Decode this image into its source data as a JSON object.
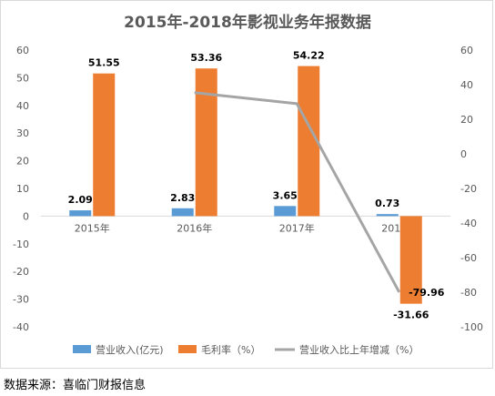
{
  "chart_data": {
    "type": "bar",
    "title": "2015年-2018年影视业务年报数据",
    "categories": [
      "2015年",
      "2016年",
      "2017年",
      "2018年"
    ],
    "series": [
      {
        "name": "营业收入(亿元)",
        "kind": "bar",
        "axis": "left",
        "color": "#5B9BD5",
        "values": [
          2.09,
          2.83,
          3.65,
          0.73
        ],
        "labels": [
          "2.09",
          "2.83",
          "3.65",
          "0.73"
        ]
      },
      {
        "name": "毛利率（%）",
        "kind": "bar",
        "axis": "left",
        "color": "#ED7D31",
        "values": [
          51.55,
          53.36,
          54.22,
          -31.66
        ],
        "labels": [
          "51.55",
          "53.36",
          "54.22",
          "-31.66"
        ]
      },
      {
        "name": "营业收入比上年增减（%）",
        "kind": "line",
        "axis": "right",
        "color": "#A5A5A5",
        "values": [
          null,
          35.4,
          29.0,
          -79.96
        ],
        "labels": [
          null,
          null,
          null,
          "-79.96"
        ]
      }
    ],
    "left_axis": {
      "ylim": [
        -40,
        60
      ],
      "ticks": [
        "60",
        "50",
        "40",
        "30",
        "20",
        "10",
        "0",
        "-10",
        "-20",
        "-30",
        "-40"
      ]
    },
    "right_axis": {
      "ylim": [
        -100,
        60
      ],
      "ticks": [
        "60",
        "40",
        "20",
        "0",
        "-20",
        "-40",
        "-60",
        "-80",
        "-100"
      ]
    },
    "legend": "bottom",
    "grid": false
  },
  "source": "数据来源：喜临门财报信息"
}
